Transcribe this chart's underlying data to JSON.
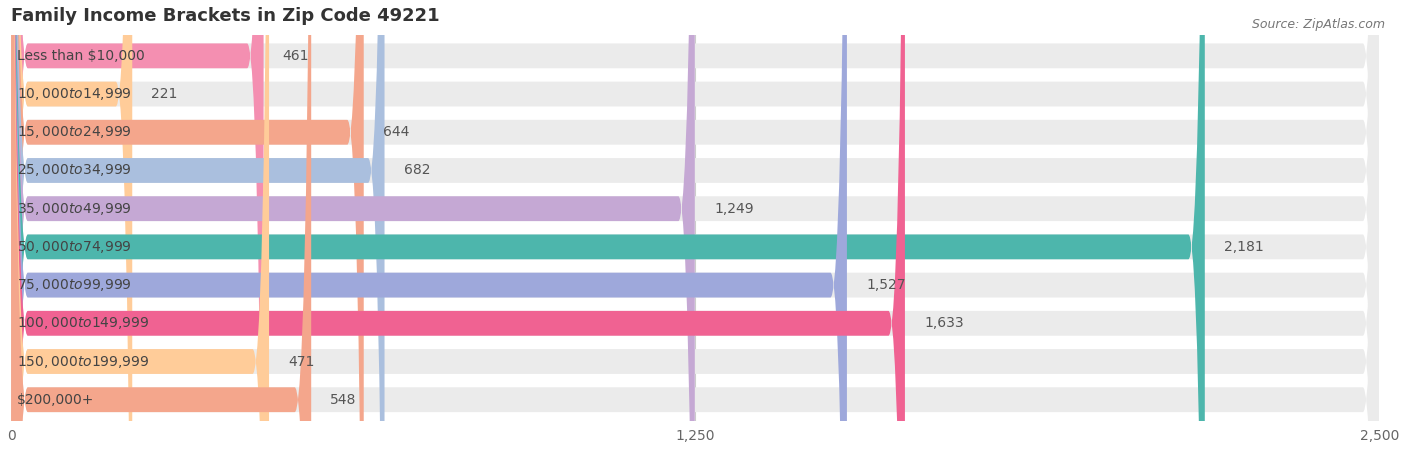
{
  "title": "Family Income Brackets in Zip Code 49221",
  "source": "Source: ZipAtlas.com",
  "categories": [
    "Less than $10,000",
    "$10,000 to $14,999",
    "$15,000 to $24,999",
    "$25,000 to $34,999",
    "$35,000 to $49,999",
    "$50,000 to $74,999",
    "$75,000 to $99,999",
    "$100,000 to $149,999",
    "$150,000 to $199,999",
    "$200,000+"
  ],
  "values": [
    461,
    221,
    644,
    682,
    1249,
    2181,
    1527,
    1633,
    471,
    548
  ],
  "colors": [
    "#F48FB1",
    "#FFCC99",
    "#F4A68C",
    "#AABFDE",
    "#C5A8D4",
    "#4DB6AC",
    "#9EA8DB",
    "#F06292",
    "#FFCC99",
    "#F4A68C"
  ],
  "xlim": [
    0,
    2500
  ],
  "xticks": [
    0,
    1250,
    2500
  ],
  "background_color": "#ffffff",
  "bar_bg_color": "#ebebeb",
  "title_fontsize": 13,
  "label_fontsize": 10,
  "value_fontsize": 10,
  "bar_height": 0.65,
  "figsize": [
    14.06,
    4.5
  ],
  "dpi": 100
}
